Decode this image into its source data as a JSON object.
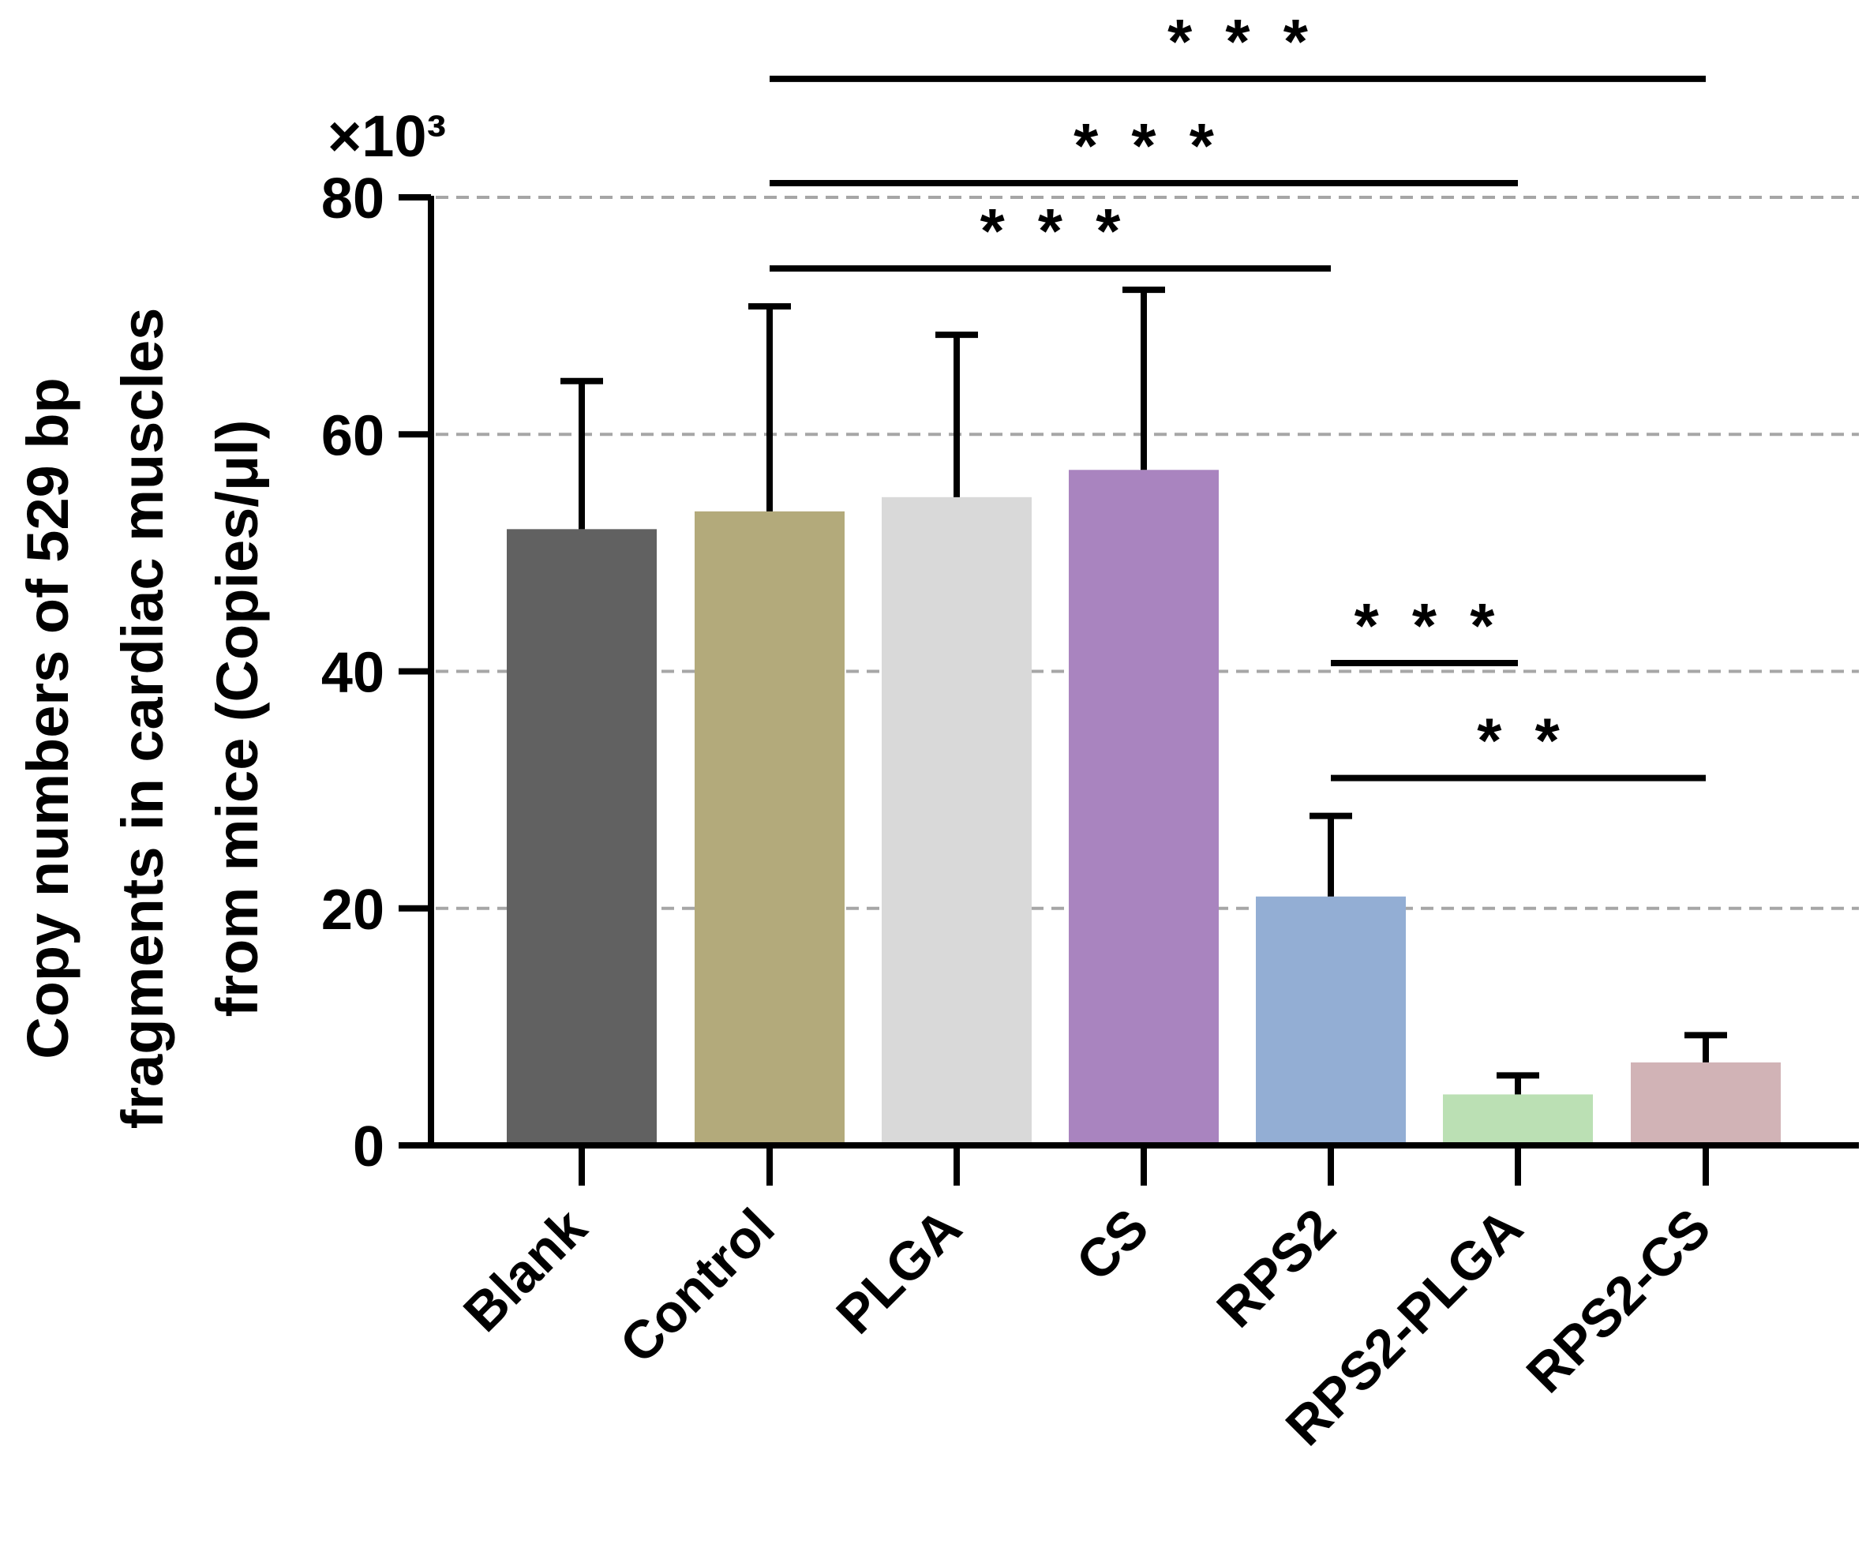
{
  "chart_data": {
    "type": "bar",
    "ylabel_lines": [
      "Copy numbers of 529 bp",
      "fragments in cardiac muscles",
      "from mice (Copies/μl)"
    ],
    "y_multiplier": "×10³",
    "ylim": [
      0,
      80
    ],
    "yticks": [
      "0",
      "20",
      "40",
      "60",
      "80"
    ],
    "grid": "dashed at 20, 40, 60, 80",
    "categories": [
      "Blank",
      "Control",
      "PLGA",
      "CS",
      "RPS2",
      "RPS2-PLGA",
      "RPS2-CS"
    ],
    "values": [
      52,
      53.5,
      54.7,
      57,
      21,
      4.3,
      7
    ],
    "errors": [
      12.5,
      17.3,
      13.7,
      15.2,
      6.8,
      1.6,
      2.3
    ],
    "colors": [
      "#616161",
      "#b3aa7b",
      "#d9d9d9",
      "#a984bf",
      "#93aed4",
      "#bbe0b4",
      "#d1b3b6"
    ],
    "significance": [
      {
        "from": "Control",
        "to": "RPS2",
        "label": "***",
        "y": 74
      },
      {
        "from": "Control",
        "to": "RPS2-PLGA",
        "label": "***",
        "y": 81.2
      },
      {
        "from": "Control",
        "to": "RPS2-CS",
        "label": "***",
        "y": 90
      },
      {
        "from": "RPS2",
        "to": "RPS2-PLGA",
        "label": "***",
        "y": 40.7
      },
      {
        "from": "RPS2",
        "to": "RPS2-CS",
        "label": "**",
        "y": 31
      }
    ]
  }
}
